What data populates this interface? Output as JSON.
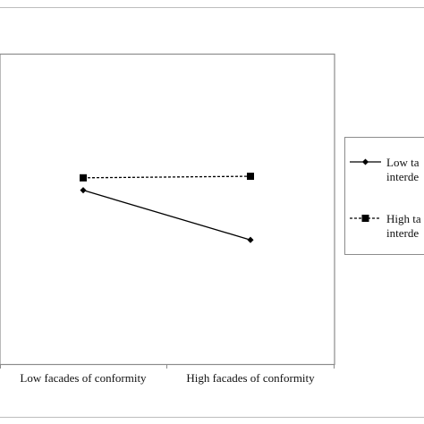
{
  "chart_data": {
    "type": "line",
    "categories": [
      "Low facades of conformity",
      "High facades of conformity"
    ],
    "series": [
      {
        "name_lines": [
          "Low ta",
          "interde"
        ],
        "values": [
          5.6,
          4.0
        ],
        "marker": "diamond",
        "line_style": "solid",
        "color": "#000000"
      },
      {
        "name_lines": [
          "High ta",
          "interde"
        ],
        "values": [
          6.0,
          6.05
        ],
        "marker": "square",
        "line_style": "dashed",
        "color": "#000000"
      }
    ],
    "ylim": [
      0,
      10
    ],
    "grid": false,
    "legend_position": "right"
  }
}
